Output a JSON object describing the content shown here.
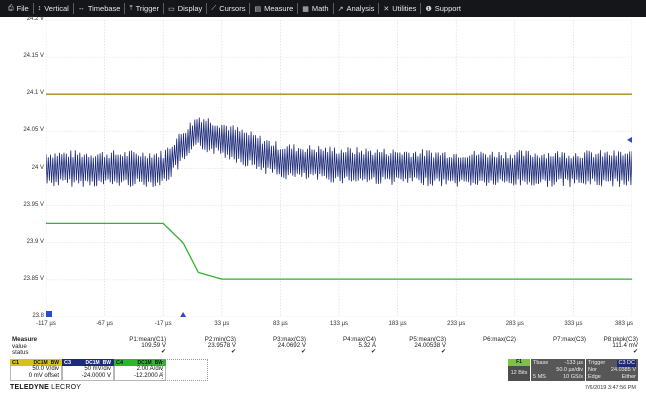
{
  "menu": [
    {
      "icon": "⎙",
      "icon_name": "file-icon",
      "label": "File"
    },
    {
      "icon": "↕",
      "icon_name": "vertical-icon",
      "label": "Vertical"
    },
    {
      "icon": "↔",
      "icon_name": "timebase-icon",
      "label": "Timebase"
    },
    {
      "icon": "⤒",
      "icon_name": "trigger-icon",
      "label": "Trigger"
    },
    {
      "icon": "▭",
      "icon_name": "display-icon",
      "label": "Display"
    },
    {
      "icon": "⟋",
      "icon_name": "cursors-icon",
      "label": "Cursors"
    },
    {
      "icon": "▤",
      "icon_name": "measure-icon",
      "label": "Measure"
    },
    {
      "icon": "▦",
      "icon_name": "math-icon",
      "label": "Math"
    },
    {
      "icon": "↗",
      "icon_name": "analysis-icon",
      "label": "Analysis"
    },
    {
      "icon": "✕",
      "icon_name": "utilities-icon",
      "label": "Utilities"
    },
    {
      "icon": "❶",
      "icon_name": "support-icon",
      "label": "Support"
    }
  ],
  "y_ticks": [
    "24.2 V",
    "24.15 V",
    "24.1 V",
    "24.05 V",
    "24 V",
    "23.95 V",
    "23.9 V",
    "23.85 V",
    "23.8"
  ],
  "x_ticks": [
    "-117 µs",
    "-67 µs",
    "-17 µs",
    "33 µs",
    "83 µs",
    "133 µs",
    "183 µs",
    "233 µs",
    "283 µs",
    "333 µs",
    "383 µs"
  ],
  "colors": {
    "ch_blue": "#1c2a78",
    "ch_olive": "#a28a14",
    "ch_green": "#2fb42f",
    "marker_blue": "#2a4bd0",
    "grid": "#d6d6d6"
  },
  "measure": {
    "title": "Measure",
    "row_labels": [
      "value",
      "status"
    ],
    "columns": [
      {
        "name": "P1:mean(C1)",
        "value": "109.59 V",
        "status": "✔"
      },
      {
        "name": "P2:min(C3)",
        "value": "23.9578 V",
        "status": "✔"
      },
      {
        "name": "P3:max(C3)",
        "value": "24.0692 V",
        "status": "✔"
      },
      {
        "name": "P4:max(C4)",
        "value": "5.32 A",
        "status": "✔"
      },
      {
        "name": "P5:mean(C3)",
        "value": "24.00538 V",
        "status": "✔"
      },
      {
        "name": "P6:max(C2)",
        "value": "",
        "status": ""
      },
      {
        "name": "P7:max(C3)",
        "value": "",
        "status": ""
      },
      {
        "name": "P8:pkpk(C3)",
        "value": "111.4 mV",
        "status": "✔"
      }
    ]
  },
  "channels": [
    {
      "label": "C1",
      "badges": [
        "DC1M",
        "BW"
      ],
      "line1": "50.0 V/div",
      "line2": "0 mV offset",
      "color": "#d4c21d"
    },
    {
      "label": "C3",
      "badges": [
        "DC1M",
        "BW"
      ],
      "line1": "50 mV/div",
      "line2": "-24.0000 V",
      "color": "#1c2a78"
    },
    {
      "label": "C4",
      "badges": [
        "DC1M",
        "BW"
      ],
      "line1": "2.00 A/div",
      "line2": "-12.2000 A",
      "color": "#2fb42f"
    }
  ],
  "f1": {
    "label": "F1",
    "value": "12 Bits"
  },
  "timebase": {
    "label": "Tbase",
    "delay": "-133 µs",
    "line2a": "50.0 µs/div",
    "line3a": "5 MS",
    "line3b": "10 GS/s"
  },
  "trigger": {
    "label": "Trigger",
    "badge": "C3 DC",
    "line2a": "Nor",
    "line2b": "24.0385 V",
    "line3a": "Edge",
    "line3b": "Either"
  },
  "brand": {
    "name": "TELEDYNE",
    "sub": " LECROY"
  },
  "datetime": "7/6/2019 3:47:56 PM",
  "chart_data": {
    "type": "line",
    "xlabel": "",
    "ylabel": "",
    "x_range_us": [
      -117,
      383
    ],
    "y_range_V": [
      23.8,
      24.2
    ],
    "series": [
      {
        "trace": "C1",
        "color": "#a28a14",
        "x": [
          -117,
          383
        ],
        "y": [
          24.1,
          24.1
        ]
      },
      {
        "trace": "C3",
        "color": "#1c2a78",
        "x": [
          -117,
          -17,
          0,
          13,
          33,
          83,
          133,
          233,
          383
        ],
        "y": [
          24.0,
          24.0,
          24.03,
          24.05,
          24.04,
          24.01,
          24.005,
          24.0,
          24.0
        ],
        "ripple_V": 0.025
      },
      {
        "trace": "C4",
        "color": "#2fb42f",
        "x": [
          -117,
          -17,
          0,
          13,
          33,
          83,
          383
        ],
        "y": [
          23.926,
          23.926,
          23.9,
          23.86,
          23.851,
          23.851,
          23.851
        ]
      }
    ]
  }
}
